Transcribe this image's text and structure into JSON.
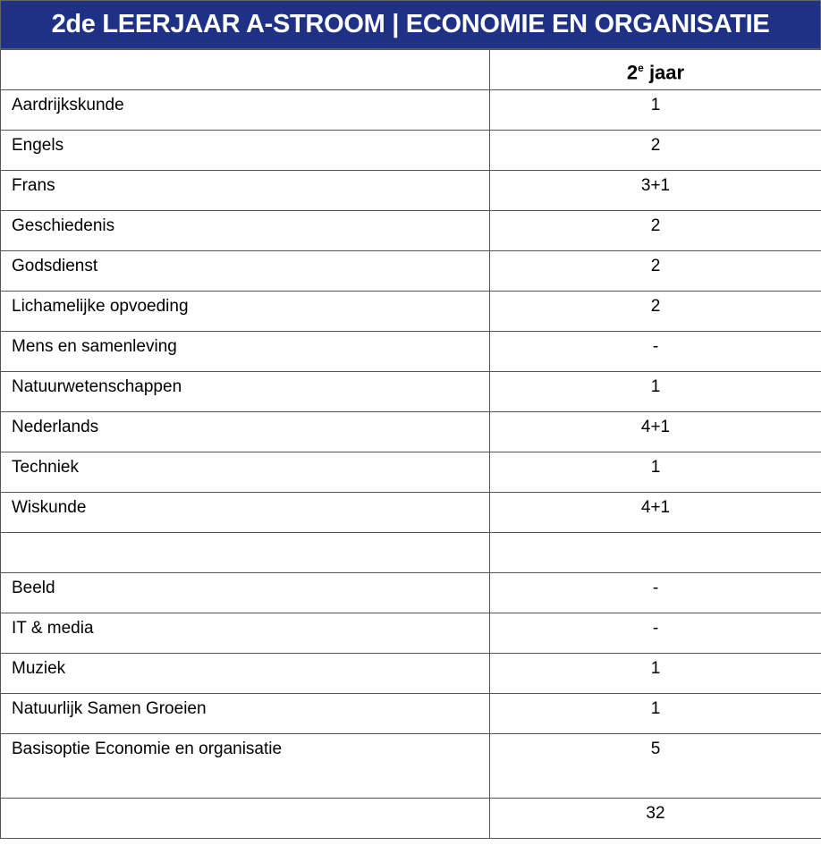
{
  "title": "2de LEERJAAR A-STROOM | ECONOMIE EN ORGANISATIE",
  "column_header": {
    "label": "2",
    "superscript": "e",
    "suffix": " jaar"
  },
  "rows": [
    {
      "subject": "Aardrijkskunde",
      "hours": "1"
    },
    {
      "subject": "Engels",
      "hours": "2"
    },
    {
      "subject": "Frans",
      "hours": "3+1"
    },
    {
      "subject": "Geschiedenis",
      "hours": "2"
    },
    {
      "subject": "Godsdienst",
      "hours": "2"
    },
    {
      "subject": "Lichamelijke opvoeding",
      "hours": "2"
    },
    {
      "subject": "Mens en samenleving",
      "hours": "-"
    },
    {
      "subject": "Natuurwetenschappen",
      "hours": "1"
    },
    {
      "subject": "Nederlands",
      "hours": "4+1"
    },
    {
      "subject": "Techniek",
      "hours": "1"
    },
    {
      "subject": "Wiskunde",
      "hours": "4+1"
    },
    {
      "subject": "",
      "hours": ""
    },
    {
      "subject": "Beeld",
      "hours": "-"
    },
    {
      "subject": "IT & media",
      "hours": "-"
    },
    {
      "subject": "Muziek",
      "hours": "1"
    },
    {
      "subject": "Natuurlijk Samen Groeien",
      "hours": "1"
    },
    {
      "subject": "Basisoptie Economie en organisatie",
      "hours": "5"
    }
  ],
  "total": {
    "label": "",
    "hours": "32"
  }
}
